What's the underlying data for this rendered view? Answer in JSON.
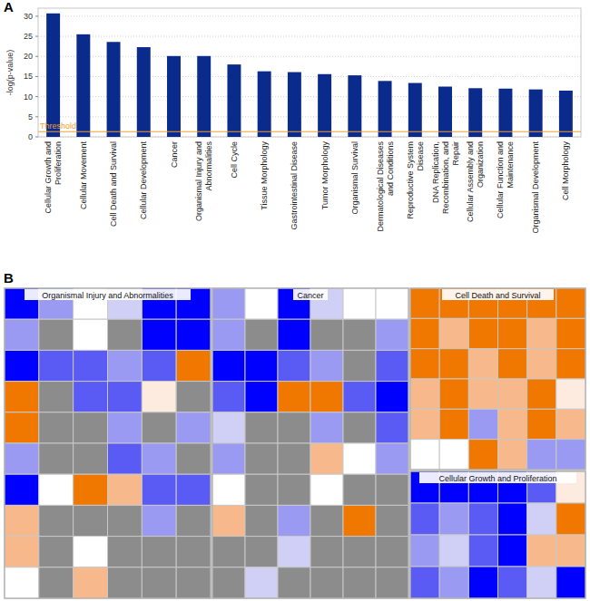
{
  "chart_data": [
    {
      "type": "bar",
      "label": "A",
      "y_label": "-log(p-value)",
      "categories": [
        "Cellular Growth and Proliferation",
        "Cellular Movement",
        "Cell Death and Survival",
        "Cellular Development",
        "Cancer",
        "Organismal Injury and Abnormalities",
        "Cell Cycle",
        "Tissue Morphology",
        "Gastrointestinal Disease",
        "Tumor Morphology",
        "Organismal Survival",
        "Dermatological Diseases and Conditions",
        "Reproductive System Disease",
        "DNA Replication, Recombination, and Repair",
        "Cellular Assembly and Organization",
        "Cellular Function and Maintenance",
        "Organismal Development",
        "Cell Morphology"
      ],
      "values": [
        30.7,
        25.5,
        23.6,
        22.3,
        20.1,
        20.1,
        18.0,
        16.3,
        16.1,
        15.6,
        15.3,
        13.9,
        13.4,
        12.5,
        12.1,
        12.0,
        11.8,
        11.5
      ],
      "color": "#0a2a8c",
      "ylim": [
        0,
        32
      ],
      "yticks": [
        0,
        5,
        10,
        15,
        20,
        25,
        30
      ],
      "grid": true,
      "threshold": {
        "value": 1.3,
        "label": "Threshold",
        "color": "#f0a030"
      }
    },
    {
      "type": "treemap",
      "label": "B",
      "groups": [
        {
          "name": "Organismal Injury and Abnormalities",
          "colors": [
            "#0000ff",
            "#9a9af2",
            "#ffffff",
            "#d0d0f7",
            "#0000ff",
            "#0000ff",
            "#9a9af2",
            "#8c8c8c",
            "#ffffff",
            "#8c8c8c",
            "#0000ff",
            "#0000ff",
            "#0000ff",
            "#5a5af5",
            "#5a5af5",
            "#9a9af2",
            "#5a5af5",
            "#f07800",
            "#f07800",
            "#8c8c8c",
            "#5a5af5",
            "#5a5af5",
            "#fdebe0",
            "#8c8c8c",
            "#f07800",
            "#8c8c8c",
            "#8c8c8c",
            "#9a9af2",
            "#8c8c8c",
            "#9a9af2",
            "#9a9af2",
            "#8c8c8c",
            "#8c8c8c",
            "#5a5af5",
            "#9a9af2",
            "#8c8c8c",
            "#0000ff",
            "#ffffff",
            "#f07800",
            "#f7b98c",
            "#5a5af5",
            "#5a5af5",
            "#f7b98c",
            "#8c8c8c",
            "#8c8c8c",
            "#8c8c8c",
            "#9a9af2",
            "#8c8c8c",
            "#f7b98c",
            "#8c8c8c",
            "#ffffff",
            "#8c8c8c",
            "#8c8c8c",
            "#8c8c8c",
            "#ffffff",
            "#8c8c8c",
            "#f7b98c",
            "#8c8c8c",
            "#8c8c8c",
            "#8c8c8c"
          ]
        },
        {
          "name": "Cancer",
          "colors": [
            "#9a9af2",
            "#ffffff",
            "#0000ff",
            "#d0d0f7",
            "#ffffff",
            "#ffffff",
            "#9a9af2",
            "#8c8c8c",
            "#0000ff",
            "#8c8c8c",
            "#8c8c8c",
            "#9a9af2",
            "#0000ff",
            "#0000ff",
            "#5a5af5",
            "#9a9af2",
            "#8c8c8c",
            "#5a5af5",
            "#5a5af5",
            "#0000ff",
            "#f07800",
            "#f07800",
            "#5a5af5",
            "#0000ff",
            "#d0d0f7",
            "#8c8c8c",
            "#8c8c8c",
            "#9a9af2",
            "#8c8c8c",
            "#5a5af5",
            "#9a9af2",
            "#8c8c8c",
            "#8c8c8c",
            "#f7b98c",
            "#ffffff",
            "#9a9af2",
            "#ffffff",
            "#8c8c8c",
            "#8c8c8c",
            "#ffffff",
            "#8c8c8c",
            "#8c8c8c",
            "#f7b98c",
            "#8c8c8c",
            "#9a9af2",
            "#8c8c8c",
            "#f07800",
            "#8c8c8c",
            "#8c8c8c",
            "#8c8c8c",
            "#d0d0f7",
            "#8c8c8c",
            "#8c8c8c",
            "#8c8c8c",
            "#8c8c8c",
            "#d0d0f7",
            "#8c8c8c",
            "#8c8c8c",
            "#8c8c8c",
            "#8c8c8c"
          ]
        },
        {
          "name": "Cell Death and Survival",
          "colors": [
            "#f07800",
            "#f07800",
            "#f07800",
            "#f07800",
            "#f07800",
            "#f07800",
            "#f07800",
            "#f7b98c",
            "#f07800",
            "#f07800",
            "#f7b98c",
            "#f07800",
            "#f07800",
            "#f07800",
            "#f7b98c",
            "#f07800",
            "#f7b98c",
            "#f07800",
            "#f7b98c",
            "#f07800",
            "#f7b98c",
            "#f7b98c",
            "#f07800",
            "#fdebe0",
            "#f7b98c",
            "#f07800",
            "#9a9af2",
            "#f7b98c",
            "#f07800",
            "#f7b98c",
            "#ffffff",
            "#ffffff",
            "#f07800",
            "#f7b98c",
            "#9a9af2",
            "#9a9af2"
          ]
        },
        {
          "name": "Cellular Growth and Proliferation",
          "colors": [
            "#0000ff",
            "#0000ff",
            "#0000ff",
            "#0000ff",
            "#5a5af5",
            "#fdebe0",
            "#5a5af5",
            "#9a9af2",
            "#5a5af5",
            "#0000ff",
            "#d0d0f7",
            "#f07800",
            "#9a9af2",
            "#d0d0f7",
            "#5a5af5",
            "#0000ff",
            "#f7b98c",
            "#f7b98c",
            "#5a5af5",
            "#9a9af2",
            "#0000ff",
            "#5a5af5",
            "#d0d0f7",
            "#0000ff"
          ]
        }
      ]
    }
  ]
}
